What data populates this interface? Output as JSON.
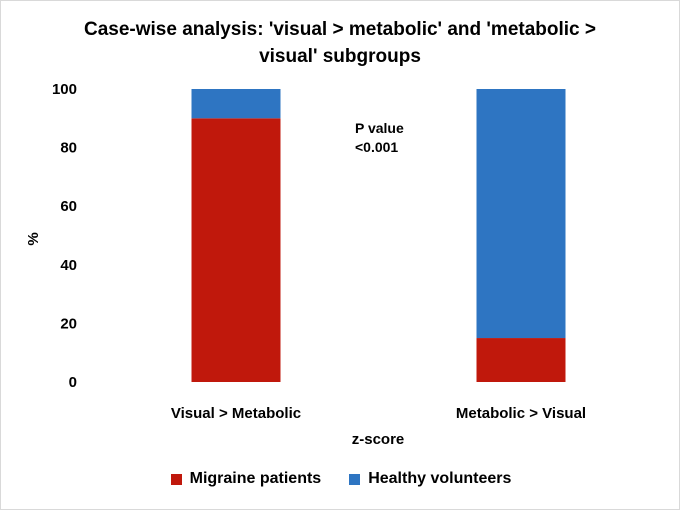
{
  "chart_data": {
    "type": "bar",
    "stacked": true,
    "title_lines": [
      "Case-wise analysis: 'visual > metabolic' and 'metabolic >",
      "visual' subgroups"
    ],
    "xlabel": "z-score",
    "ylabel": "%",
    "categories": [
      "Visual > Metabolic",
      "Metabolic > Visual"
    ],
    "series": [
      {
        "name": "Migraine patients",
        "color": "#c0180c",
        "values": [
          90,
          15
        ]
      },
      {
        "name": "Healthy volunteers",
        "color": "#2e75c2",
        "values": [
          10,
          85
        ]
      }
    ],
    "ylim": [
      0,
      100
    ],
    "yticks": [
      0,
      20,
      40,
      60,
      80,
      100
    ],
    "grid": false,
    "legend_position": "bottom",
    "annotation": {
      "lines": [
        "P value",
        "<0.001"
      ]
    }
  }
}
